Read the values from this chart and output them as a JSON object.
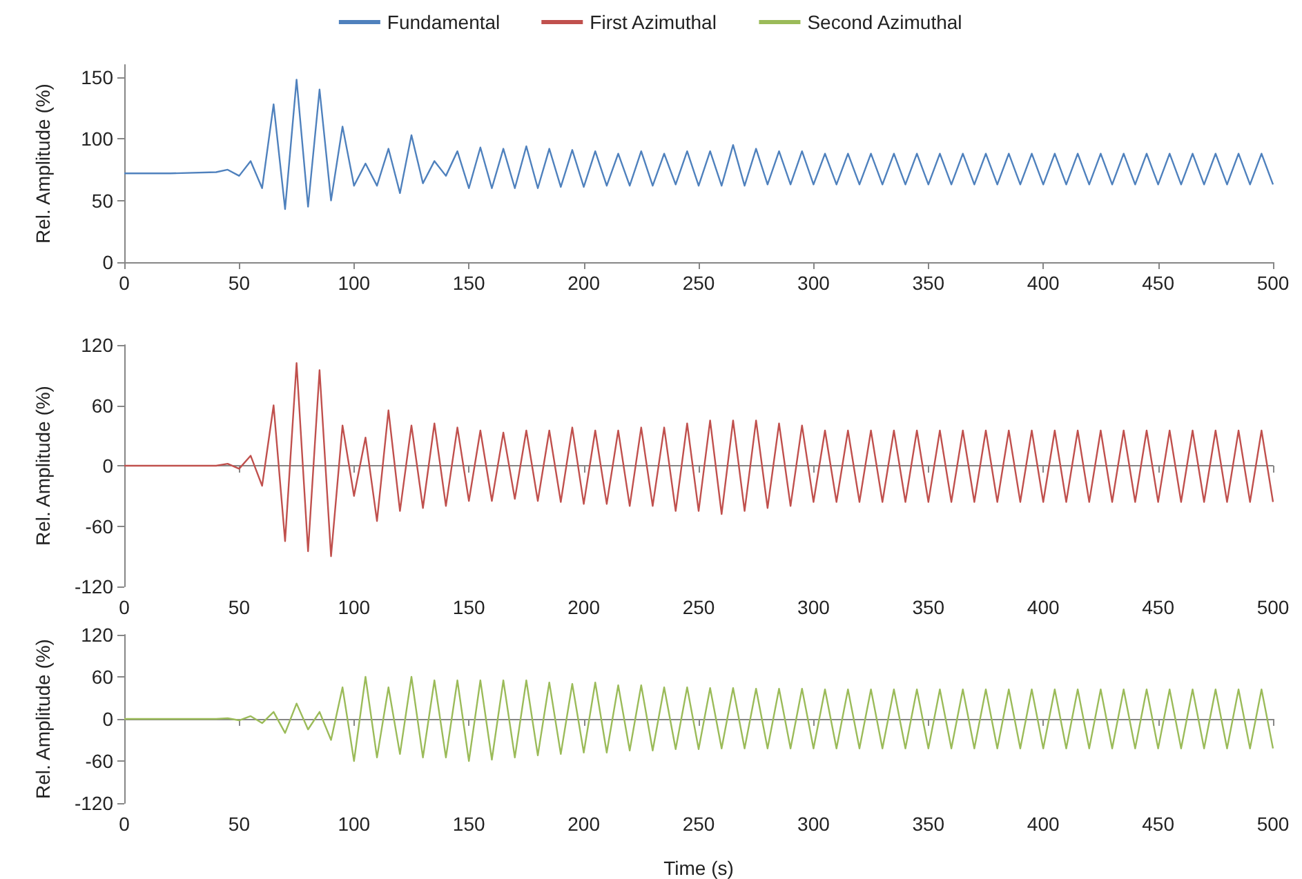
{
  "chart_data": [
    {
      "type": "line",
      "ylabel": "Rel. Amplitude (%)",
      "legend": "top",
      "xlim": [
        0,
        500
      ],
      "xticks": [
        0,
        50,
        100,
        150,
        200,
        250,
        300,
        350,
        400,
        450,
        500
      ],
      "ylim": [
        0,
        160
      ],
      "yticks": [
        0,
        50,
        100,
        150
      ],
      "x": [
        0,
        20,
        40,
        45,
        50,
        55,
        60,
        65,
        70,
        75,
        80,
        85,
        90,
        95,
        100,
        105,
        110,
        115,
        120,
        125,
        130,
        135,
        140,
        145,
        150,
        155,
        160,
        165,
        170,
        175,
        180,
        185,
        190,
        195,
        200,
        205,
        210,
        215,
        220,
        225,
        230,
        235,
        240,
        245,
        250,
        255,
        260,
        265,
        270,
        275,
        280,
        285,
        290,
        295,
        300,
        305,
        310,
        315,
        320,
        325,
        330,
        335,
        340,
        345,
        350,
        355,
        360,
        365,
        370,
        375,
        380,
        385,
        390,
        395,
        400,
        405,
        410,
        415,
        420,
        425,
        430,
        435,
        440,
        445,
        450,
        455,
        460,
        465,
        470,
        475,
        480,
        485,
        490,
        495,
        500
      ],
      "series": [
        {
          "name": "Fundamental",
          "color": "#4f81bd",
          "values": [
            72,
            72,
            73,
            75,
            70,
            82,
            60,
            128,
            43,
            148,
            45,
            140,
            50,
            110,
            62,
            80,
            62,
            92,
            56,
            103,
            64,
            82,
            70,
            90,
            60,
            93,
            60,
            92,
            60,
            94,
            60,
            92,
            61,
            91,
            61,
            90,
            62,
            88,
            62,
            90,
            62,
            88,
            63,
            90,
            62,
            90,
            62,
            95,
            62,
            92,
            63,
            90,
            63,
            90,
            63,
            88,
            63,
            88,
            63,
            88,
            63,
            88,
            63,
            88,
            63,
            88,
            63,
            88,
            63,
            88,
            63,
            88,
            63,
            88,
            63,
            88,
            63,
            88,
            63,
            88,
            63,
            88,
            63,
            88,
            63,
            88,
            63,
            88,
            63,
            88,
            63,
            88,
            63,
            88,
            63
          ]
        }
      ]
    },
    {
      "type": "line",
      "ylabel": "Rel. Amplitude (%)",
      "legend": "top",
      "xlim": [
        0,
        500
      ],
      "xticks": [
        0,
        50,
        100,
        150,
        200,
        250,
        300,
        350,
        400,
        450,
        500
      ],
      "ylim": [
        -120,
        120
      ],
      "yticks": [
        -120,
        -60,
        0,
        60,
        120
      ],
      "x": [
        0,
        20,
        40,
        45,
        50,
        55,
        60,
        65,
        70,
        75,
        80,
        85,
        90,
        95,
        100,
        105,
        110,
        115,
        120,
        125,
        130,
        135,
        140,
        145,
        150,
        155,
        160,
        165,
        170,
        175,
        180,
        185,
        190,
        195,
        200,
        205,
        210,
        215,
        220,
        225,
        230,
        235,
        240,
        245,
        250,
        255,
        260,
        265,
        270,
        275,
        280,
        285,
        290,
        295,
        300,
        305,
        310,
        315,
        320,
        325,
        330,
        335,
        340,
        345,
        350,
        355,
        360,
        365,
        370,
        375,
        380,
        385,
        390,
        395,
        400,
        405,
        410,
        415,
        420,
        425,
        430,
        435,
        440,
        445,
        450,
        455,
        460,
        465,
        470,
        475,
        480,
        485,
        490,
        495,
        500
      ],
      "series": [
        {
          "name": "First Azimuthal",
          "color": "#c0504d",
          "values": [
            0,
            0,
            0,
            2,
            -3,
            10,
            -20,
            60,
            -75,
            102,
            -85,
            95,
            -90,
            40,
            -30,
            28,
            -55,
            55,
            -45,
            40,
            -42,
            42,
            -40,
            38,
            -35,
            35,
            -35,
            33,
            -33,
            35,
            -35,
            35,
            -36,
            38,
            -38,
            35,
            -38,
            35,
            -40,
            38,
            -40,
            38,
            -45,
            42,
            -45,
            45,
            -48,
            45,
            -45,
            45,
            -42,
            42,
            -40,
            40,
            -36,
            35,
            -36,
            35,
            -36,
            35,
            -36,
            35,
            -36,
            35,
            -36,
            35,
            -36,
            35,
            -36,
            35,
            -36,
            35,
            -36,
            35,
            -36,
            35,
            -36,
            35,
            -36,
            35,
            -36,
            35,
            -36,
            35,
            -36,
            35,
            -36,
            35,
            -36,
            35,
            -36,
            35,
            -36,
            35,
            -36
          ]
        }
      ]
    },
    {
      "type": "line",
      "ylabel": "Rel. Amplitude (%)",
      "xlabel": "Time (s)",
      "legend": "top",
      "xlim": [
        0,
        500
      ],
      "xticks": [
        0,
        50,
        100,
        150,
        200,
        250,
        300,
        350,
        400,
        450,
        500
      ],
      "ylim": [
        -120,
        120
      ],
      "yticks": [
        -120,
        -60,
        0,
        60,
        120
      ],
      "x": [
        0,
        20,
        40,
        45,
        50,
        55,
        60,
        65,
        70,
        75,
        80,
        85,
        90,
        95,
        100,
        105,
        110,
        115,
        120,
        125,
        130,
        135,
        140,
        145,
        150,
        155,
        160,
        165,
        170,
        175,
        180,
        185,
        190,
        195,
        200,
        205,
        210,
        215,
        220,
        225,
        230,
        235,
        240,
        245,
        250,
        255,
        260,
        265,
        270,
        275,
        280,
        285,
        290,
        295,
        300,
        305,
        310,
        315,
        320,
        325,
        330,
        335,
        340,
        345,
        350,
        355,
        360,
        365,
        370,
        375,
        380,
        385,
        390,
        395,
        400,
        405,
        410,
        415,
        420,
        425,
        430,
        435,
        440,
        445,
        450,
        455,
        460,
        465,
        470,
        475,
        480,
        485,
        490,
        495,
        500
      ],
      "series": [
        {
          "name": "Second Azimuthal",
          "color": "#9bbb59",
          "values": [
            0,
            0,
            0,
            1,
            -2,
            4,
            -6,
            10,
            -20,
            22,
            -15,
            10,
            -30,
            45,
            -60,
            60,
            -55,
            45,
            -50,
            60,
            -55,
            55,
            -55,
            55,
            -60,
            55,
            -58,
            55,
            -55,
            55,
            -52,
            52,
            -50,
            50,
            -48,
            52,
            -48,
            48,
            -45,
            48,
            -45,
            45,
            -43,
            45,
            -43,
            44,
            -42,
            44,
            -42,
            43,
            -42,
            43,
            -42,
            43,
            -42,
            42,
            -42,
            42,
            -42,
            42,
            -42,
            42,
            -42,
            42,
            -42,
            42,
            -42,
            42,
            -42,
            42,
            -42,
            42,
            -42,
            42,
            -42,
            42,
            -42,
            42,
            -42,
            42,
            -42,
            42,
            -42,
            42,
            -42,
            42,
            -42,
            42,
            -42,
            42,
            -42,
            42,
            -42,
            42,
            -42
          ]
        }
      ]
    }
  ]
}
